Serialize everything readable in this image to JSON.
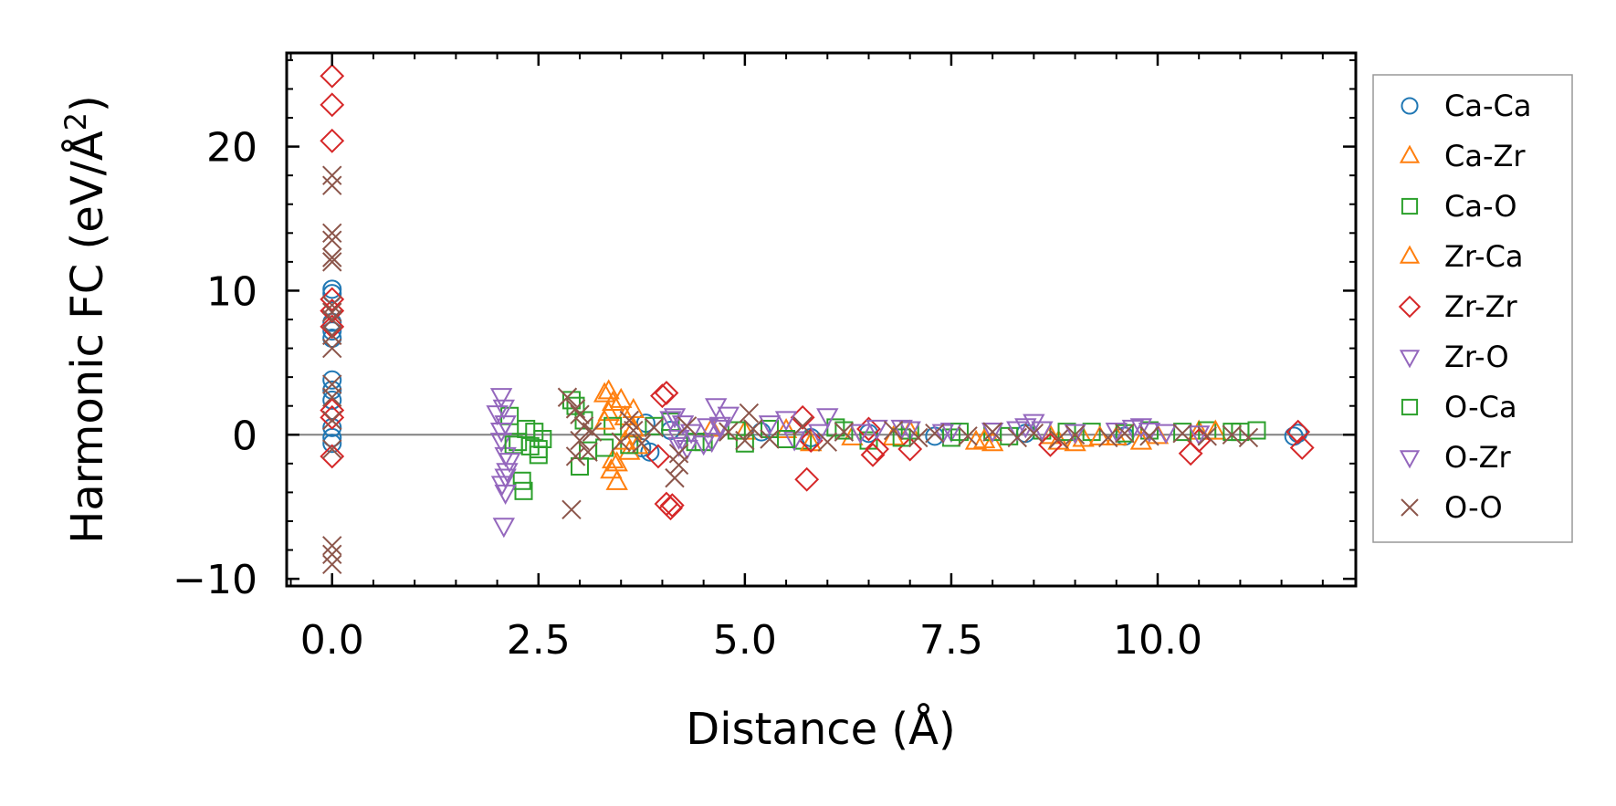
{
  "chart_data": {
    "type": "scatter",
    "title": "",
    "xlabel": "Distance (Å)",
    "ylabel_prefix": "Harmonic FC (eV/Å",
    "ylabel_sup": "2",
    "ylabel_suffix": ")",
    "xlim": [
      -0.55,
      12.4
    ],
    "ylim": [
      -10.5,
      26.5
    ],
    "xticks": [
      0.0,
      2.5,
      5.0,
      7.5,
      10.0
    ],
    "xtick_labels": [
      "0.0",
      "2.5",
      "5.0",
      "7.5",
      "10.0"
    ],
    "yticks": [
      -10,
      0,
      10,
      20
    ],
    "ytick_labels": [
      "−10",
      "0",
      "10",
      "20"
    ],
    "reference_line_y": 0,
    "legend_position": "outside-right",
    "series": [
      {
        "name": "Ca-Ca",
        "marker": "circle",
        "color": "#1f77b4",
        "points": [
          [
            0,
            10.1
          ],
          [
            0,
            9.8
          ],
          [
            0,
            7.8
          ],
          [
            0,
            7.2
          ],
          [
            0,
            6.7
          ],
          [
            0,
            3.8
          ],
          [
            0,
            3.1
          ],
          [
            0,
            2.4
          ],
          [
            0,
            0.5
          ],
          [
            0,
            -0.2
          ],
          [
            0,
            -0.6
          ],
          [
            3.75,
            -0.9
          ],
          [
            3.8,
            0.8
          ],
          [
            3.85,
            -1.2
          ],
          [
            4.1,
            0.3
          ],
          [
            5.2,
            0.2
          ],
          [
            5.8,
            -0.2
          ],
          [
            6.5,
            0.1
          ],
          [
            7.3,
            -0.1
          ],
          [
            8.4,
            0.1
          ],
          [
            9.6,
            -0.1
          ],
          [
            11.65,
            -0.1
          ],
          [
            11.7,
            0.1
          ]
        ]
      },
      {
        "name": "Ca-Zr",
        "marker": "triangle-up",
        "color": "#ff7f0e",
        "points": [
          [
            3.3,
            2.8
          ],
          [
            3.35,
            3.0
          ],
          [
            3.4,
            2.2
          ],
          [
            3.35,
            1.5
          ],
          [
            3.4,
            -1.8
          ],
          [
            3.38,
            -2.5
          ],
          [
            3.45,
            -3.3
          ],
          [
            3.5,
            2.4
          ],
          [
            3.55,
            1.2
          ],
          [
            3.6,
            -1.2
          ],
          [
            3.65,
            1.7
          ],
          [
            3.7,
            -0.8
          ],
          [
            4.6,
            0.4
          ],
          [
            5.0,
            0.2
          ],
          [
            5.5,
            0.3
          ],
          [
            6.3,
            -0.2
          ],
          [
            7.0,
            0.2
          ],
          [
            7.8,
            -0.5
          ],
          [
            8.0,
            -0.6
          ],
          [
            8.8,
            -0.5
          ],
          [
            9.0,
            -0.6
          ],
          [
            9.1,
            -0.3
          ],
          [
            9.5,
            -0.2
          ],
          [
            10.0,
            -0.1
          ],
          [
            10.5,
            0.2
          ]
        ]
      },
      {
        "name": "Ca-O",
        "marker": "square",
        "color": "#2ca02c",
        "points": [
          [
            2.15,
            1.3
          ],
          [
            2.25,
            -0.5
          ],
          [
            2.3,
            -3.2
          ],
          [
            2.32,
            -3.9
          ],
          [
            2.4,
            -0.8
          ],
          [
            2.45,
            0.2
          ],
          [
            2.5,
            -1.0
          ],
          [
            2.55,
            -0.3
          ],
          [
            2.9,
            2.4
          ],
          [
            2.95,
            2.0
          ],
          [
            3.0,
            -2.2
          ],
          [
            3.1,
            -1.1
          ],
          [
            3.4,
            0.6
          ],
          [
            3.6,
            -0.7
          ],
          [
            4.1,
            0.9
          ],
          [
            4.5,
            -0.5
          ],
          [
            5.0,
            -0.6
          ],
          [
            5.3,
            0.4
          ],
          [
            5.7,
            -0.4
          ],
          [
            6.1,
            0.5
          ],
          [
            6.5,
            -0.4
          ],
          [
            7.0,
            0.3
          ],
          [
            7.5,
            -0.2
          ],
          [
            8.0,
            0.2
          ],
          [
            8.6,
            0.3
          ],
          [
            9.2,
            0.2
          ],
          [
            9.9,
            0.3
          ],
          [
            10.6,
            0.3
          ],
          [
            11.0,
            0.2
          ],
          [
            11.2,
            0.3
          ]
        ]
      },
      {
        "name": "Zr-Ca",
        "marker": "triangle-up",
        "color": "#ff7f0e",
        "points": [
          [
            3.3,
            0.9
          ],
          [
            3.45,
            -2.0
          ],
          [
            3.55,
            -0.5
          ],
          [
            3.65,
            0.4
          ],
          [
            5.8,
            -0.6
          ],
          [
            6.8,
            -0.2
          ],
          [
            7.9,
            -0.4
          ],
          [
            8.7,
            -0.1
          ],
          [
            9.3,
            -0.2
          ],
          [
            9.8,
            -0.5
          ],
          [
            10.7,
            0.2
          ]
        ]
      },
      {
        "name": "Zr-Zr",
        "marker": "diamond",
        "color": "#d62728",
        "points": [
          [
            0,
            24.9
          ],
          [
            0,
            22.9
          ],
          [
            0,
            20.4
          ],
          [
            0,
            9.4
          ],
          [
            0,
            8.6
          ],
          [
            0,
            7.5
          ],
          [
            0,
            1.7
          ],
          [
            0,
            1.2
          ],
          [
            0,
            -1.5
          ],
          [
            3.95,
            -1.5
          ],
          [
            4.0,
            2.7
          ],
          [
            4.05,
            2.9
          ],
          [
            4.05,
            -4.8
          ],
          [
            4.1,
            -5.1
          ],
          [
            4.12,
            -4.9
          ],
          [
            5.7,
            1.2
          ],
          [
            5.75,
            -3.1
          ],
          [
            5.8,
            -0.4
          ],
          [
            6.5,
            0.4
          ],
          [
            6.55,
            -1.4
          ],
          [
            6.6,
            -1.0
          ],
          [
            7.0,
            -1.0
          ],
          [
            8.7,
            -0.7
          ],
          [
            10.4,
            -1.3
          ],
          [
            10.5,
            -0.4
          ],
          [
            11.7,
            0.2
          ],
          [
            11.75,
            -0.9
          ]
        ]
      },
      {
        "name": "Zr-O",
        "marker": "triangle-down",
        "color": "#9467bd",
        "points": [
          [
            2.05,
            2.7
          ],
          [
            2.08,
            1.9
          ],
          [
            2.1,
            0.8
          ],
          [
            2.05,
            -0.4
          ],
          [
            2.1,
            -1.4
          ],
          [
            2.12,
            -2.5
          ],
          [
            2.06,
            -3.4
          ],
          [
            2.1,
            -4.0
          ],
          [
            2.08,
            -6.3
          ],
          [
            4.15,
            1.3
          ],
          [
            4.2,
            -0.7
          ],
          [
            4.25,
            0.8
          ],
          [
            4.3,
            -0.9
          ],
          [
            4.55,
            0.6
          ],
          [
            4.6,
            -0.4
          ],
          [
            4.65,
            2.0
          ],
          [
            4.7,
            0.7
          ],
          [
            5.5,
            1.1
          ],
          [
            5.6,
            -0.3
          ],
          [
            6.0,
            1.3
          ],
          [
            6.6,
            0.5
          ],
          [
            7.0,
            0.4
          ],
          [
            7.5,
            0.3
          ],
          [
            8.4,
            0.6
          ],
          [
            8.5,
            0.9
          ],
          [
            8.6,
            0.4
          ],
          [
            9.7,
            0.5
          ],
          [
            9.8,
            0.6
          ],
          [
            9.9,
            0.3
          ]
        ]
      },
      {
        "name": "O-Ca",
        "marker": "square",
        "color": "#2ca02c",
        "points": [
          [
            2.2,
            -0.7
          ],
          [
            2.35,
            0.4
          ],
          [
            2.5,
            -1.4
          ],
          [
            3.05,
            1.0
          ],
          [
            3.3,
            -0.9
          ],
          [
            3.9,
            0.6
          ],
          [
            4.4,
            -0.5
          ],
          [
            4.9,
            0.3
          ],
          [
            5.5,
            -0.3
          ],
          [
            6.2,
            0.3
          ],
          [
            6.9,
            -0.2
          ],
          [
            7.6,
            0.2
          ],
          [
            8.2,
            -0.1
          ],
          [
            8.9,
            0.2
          ],
          [
            9.6,
            0.1
          ],
          [
            10.3,
            0.2
          ],
          [
            10.9,
            0.2
          ]
        ]
      },
      {
        "name": "O-Zr",
        "marker": "triangle-down",
        "color": "#9467bd",
        "points": [
          [
            2.0,
            1.5
          ],
          [
            2.05,
            0.3
          ],
          [
            2.15,
            -1.8
          ],
          [
            2.1,
            -2.9
          ],
          [
            4.1,
            1.1
          ],
          [
            4.2,
            -0.2
          ],
          [
            4.35,
            0.2
          ],
          [
            4.5,
            -0.6
          ],
          [
            4.7,
            0.5
          ],
          [
            4.8,
            1.4
          ],
          [
            5.3,
            0.8
          ],
          [
            5.9,
            0.2
          ],
          [
            6.4,
            0.2
          ],
          [
            6.9,
            0.5
          ],
          [
            7.4,
            0.2
          ],
          [
            8.0,
            0.3
          ],
          [
            8.3,
            0.4
          ],
          [
            9.0,
            0.2
          ],
          [
            9.5,
            0.3
          ],
          [
            10.1,
            0.2
          ],
          [
            10.5,
            0.1
          ]
        ]
      },
      {
        "name": "O-O",
        "marker": "cross",
        "color": "#8c564b",
        "points": [
          [
            0,
            18.0
          ],
          [
            0,
            17.3
          ],
          [
            0,
            14.0
          ],
          [
            0,
            13.5
          ],
          [
            0,
            12.3
          ],
          [
            0,
            12.0
          ],
          [
            0,
            9.0
          ],
          [
            0,
            8.5
          ],
          [
            0,
            8.0
          ],
          [
            0,
            6.9
          ],
          [
            0,
            6.0
          ],
          [
            0,
            3.5
          ],
          [
            0,
            2.6
          ],
          [
            0,
            1.0
          ],
          [
            0,
            -1.0
          ],
          [
            0,
            -7.7
          ],
          [
            0,
            -8.3
          ],
          [
            0,
            -9.0
          ],
          [
            2.85,
            2.6
          ],
          [
            2.9,
            -5.2
          ],
          [
            2.95,
            1.8
          ],
          [
            2.95,
            -1.5
          ],
          [
            3.0,
            1.4
          ],
          [
            3.0,
            -0.4
          ],
          [
            3.05,
            0.6
          ],
          [
            3.1,
            -1.2
          ],
          [
            3.15,
            0.2
          ],
          [
            3.5,
            -0.5
          ],
          [
            3.6,
            1.0
          ],
          [
            3.65,
            0.3
          ],
          [
            3.75,
            -0.6
          ],
          [
            3.9,
            0.5
          ],
          [
            4.15,
            -3.0
          ],
          [
            4.2,
            -1.3
          ],
          [
            4.2,
            -2.1
          ],
          [
            4.3,
            0.6
          ],
          [
            4.8,
            0.2
          ],
          [
            5.0,
            -0.4
          ],
          [
            5.05,
            1.5
          ],
          [
            5.1,
            0.4
          ],
          [
            5.3,
            -0.3
          ],
          [
            5.7,
            0.6
          ],
          [
            6.0,
            -0.5
          ],
          [
            6.2,
            0.2
          ],
          [
            6.8,
            0.3
          ],
          [
            7.1,
            -0.2
          ],
          [
            7.3,
            0.1
          ],
          [
            7.7,
            -0.1
          ],
          [
            8.0,
            0.2
          ],
          [
            8.3,
            -0.2
          ],
          [
            8.5,
            0.1
          ],
          [
            8.8,
            -0.3
          ],
          [
            9.0,
            0.0
          ],
          [
            9.4,
            -0.2
          ],
          [
            9.6,
            0.1
          ],
          [
            9.9,
            -0.1
          ],
          [
            10.3,
            0.1
          ],
          [
            10.6,
            -0.1
          ],
          [
            10.9,
            0.0
          ],
          [
            11.1,
            -0.2
          ]
        ]
      }
    ]
  }
}
